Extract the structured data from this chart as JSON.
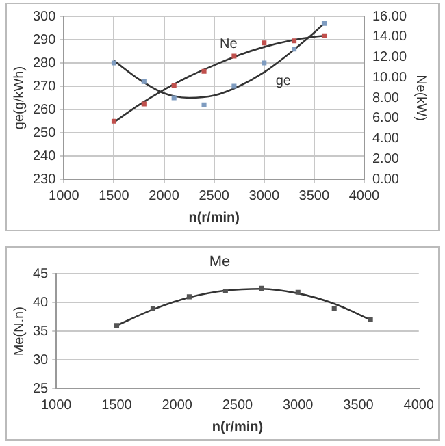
{
  "chart_data": [
    {
      "type": "scatter",
      "xlabel": "n(r/min)",
      "ylabel": "ge(g/kWh)",
      "y2label": "Ne(kW)",
      "marker": "square",
      "grid": true,
      "xlim": [
        1000,
        4000
      ],
      "xticks": [
        1000,
        1500,
        2000,
        2500,
        3000,
        3500,
        4000
      ],
      "ylim": [
        230,
        300
      ],
      "yticks": [
        230,
        240,
        250,
        260,
        270,
        280,
        290,
        300
      ],
      "y2lim": [
        0,
        16
      ],
      "y2ticks": [
        {
          "value": 0,
          "label": "0.00"
        },
        {
          "value": 2,
          "label": "2.00"
        },
        {
          "value": 4,
          "label": "4.00"
        },
        {
          "value": 6,
          "label": "6.00"
        },
        {
          "value": 8,
          "label": "8.00"
        },
        {
          "value": 10,
          "label": "10.00"
        },
        {
          "value": 12,
          "label": "12.00"
        },
        {
          "value": 14,
          "label": "14.00"
        },
        {
          "value": 16,
          "label": "16.00"
        }
      ],
      "series": [
        {
          "name": "Ne",
          "axis": "y2",
          "color": "#c0504d",
          "x": [
            1500,
            1800,
            2100,
            2400,
            2700,
            3000,
            3300,
            3600
          ],
          "values": [
            5.7,
            7.4,
            9.2,
            10.6,
            12.1,
            13.4,
            13.6,
            14.1
          ]
        },
        {
          "name": "ge",
          "color": "#7f9cc0",
          "x": [
            1500,
            1800,
            2100,
            2400,
            2700,
            3000,
            3300,
            3600
          ],
          "values": [
            280,
            272,
            265,
            262,
            270,
            280,
            286,
            297
          ]
        },
        {
          "type": "line",
          "marker": "none",
          "axis": "y2",
          "color": "#333333",
          "x": [
            1500,
            1750,
            2000,
            2250,
            2500,
            2750,
            3000,
            3250,
            3500,
            3600
          ],
          "values": [
            5.6,
            7.3,
            8.8,
            10.1,
            11.2,
            12.2,
            13.0,
            13.6,
            14.0,
            14.1
          ]
        },
        {
          "type": "line",
          "marker": "none",
          "color": "#333333",
          "x": [
            1500,
            1750,
            2000,
            2250,
            2500,
            2750,
            3000,
            3250,
            3500,
            3600
          ],
          "values": [
            281,
            273,
            267,
            265,
            266,
            270,
            276,
            284,
            293,
            297
          ]
        }
      ]
    },
    {
      "type": "scatter",
      "title": "Me",
      "xlabel": "n(r/min)",
      "ylabel": "Me(N.n)",
      "marker": "square",
      "grid": "y",
      "xlim": [
        1000,
        4000
      ],
      "xticks": [
        1000,
        1500,
        2000,
        2500,
        3000,
        3500,
        4000
      ],
      "ylim": [
        25,
        45
      ],
      "yticks": [
        25,
        30,
        35,
        40,
        45
      ],
      "series": [
        {
          "color": "#555555",
          "x": [
            1500,
            1800,
            2100,
            2400,
            2700,
            3000,
            3300,
            3600
          ],
          "values": [
            36,
            39,
            41,
            42,
            42.5,
            41.8,
            39,
            37
          ]
        },
        {
          "type": "line",
          "marker": "none",
          "color": "#333333",
          "x": [
            1500,
            1800,
            2100,
            2400,
            2700,
            3000,
            3300,
            3600
          ],
          "values": [
            36,
            38.8,
            40.9,
            42.1,
            42.4,
            41.6,
            39.8,
            37
          ]
        }
      ]
    }
  ]
}
